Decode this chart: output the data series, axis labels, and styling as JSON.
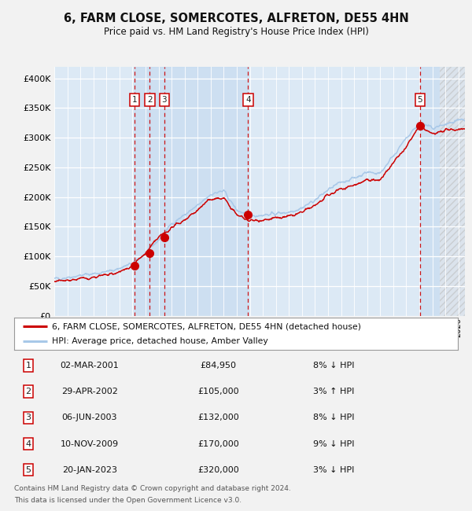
{
  "title": "6, FARM CLOSE, SOMERCOTES, ALFRETON, DE55 4HN",
  "subtitle": "Price paid vs. HM Land Registry's House Price Index (HPI)",
  "xlim": [
    1995.0,
    2026.5
  ],
  "ylim": [
    0,
    420000
  ],
  "yticks": [
    0,
    50000,
    100000,
    150000,
    200000,
    250000,
    300000,
    350000,
    400000
  ],
  "ytick_labels": [
    "£0",
    "£50K",
    "£100K",
    "£150K",
    "£200K",
    "£250K",
    "£300K",
    "£350K",
    "£400K"
  ],
  "bg_color": "#dce9f5",
  "grid_color": "#ffffff",
  "sale_color": "#cc0000",
  "hpi_color": "#a8c8e8",
  "sale_label": "6, FARM CLOSE, SOMERCOTES, ALFRETON, DE55 4HN (detached house)",
  "hpi_label": "HPI: Average price, detached house, Amber Valley",
  "transactions": [
    {
      "num": 1,
      "date": "02-MAR-2001",
      "year": 2001.17,
      "price": 84950,
      "pct": "8%",
      "dir": "↓"
    },
    {
      "num": 2,
      "date": "29-APR-2002",
      "year": 2002.33,
      "price": 105000,
      "pct": "3%",
      "dir": "↑"
    },
    {
      "num": 3,
      "date": "06-JUN-2003",
      "year": 2003.44,
      "price": 132000,
      "pct": "8%",
      "dir": "↓"
    },
    {
      "num": 4,
      "date": "10-NOV-2009",
      "year": 2009.87,
      "price": 170000,
      "pct": "9%",
      "dir": "↓"
    },
    {
      "num": 5,
      "date": "20-JAN-2023",
      "year": 2023.05,
      "price": 320000,
      "pct": "3%",
      "dir": "↓"
    }
  ],
  "footer_line1": "Contains HM Land Registry data © Crown copyright and database right 2024.",
  "footer_line2": "This data is licensed under the Open Government Licence v3.0.",
  "future_hatch_start": 2024.58,
  "shade_color": "#c5daf0",
  "sale_shading_regions": [
    [
      2001.17,
      2002.33
    ],
    [
      2002.33,
      2003.44
    ],
    [
      2003.44,
      2009.87
    ],
    [
      2023.05,
      2026.5
    ]
  ]
}
